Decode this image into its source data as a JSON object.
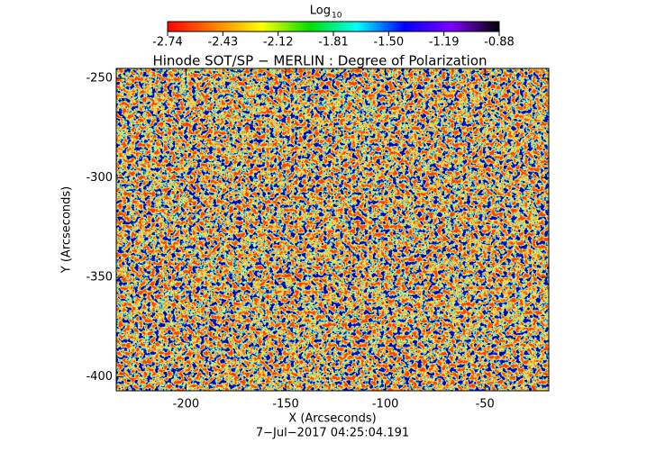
{
  "chart_data": {
    "type": "image",
    "title": "Hinode SOT/SP − MERLIN : Degree of Polarization",
    "xlabel": "X (Arcseconds)",
    "ylabel": "Y (Arcseconds)",
    "footer": "7−Jul−2017 04:25:04.191",
    "colorbar_title": "Log",
    "colorbar_title_sub": "10",
    "xlim": [
      -235,
      -18
    ],
    "ylim": [
      -407,
      -245
    ],
    "xticks": [
      -200,
      -150,
      -100,
      -50
    ],
    "yticks": [
      -250,
      -300,
      -350,
      -400
    ],
    "colorbar_lim": [
      -2.74,
      -0.88
    ],
    "colorbar_ticks": [
      -2.74,
      -2.43,
      -2.12,
      -1.81,
      {
        "value": -1.5,
        "label": "-1.50"
      },
      -1.19,
      -0.88
    ],
    "colormap": [
      "#ff0000",
      "#ff8000",
      "#ffff00",
      "#00e000",
      "#00ffff",
      "#0000ff",
      "#8000ff",
      "#000000"
    ]
  }
}
